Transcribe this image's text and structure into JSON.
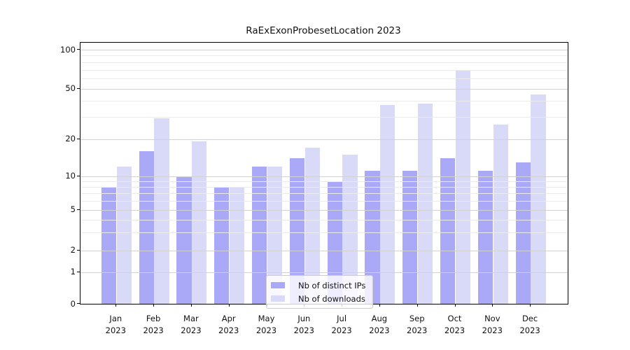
{
  "title": "RaExExonProbesetLocation 2023",
  "colors": {
    "distinct_ips": "#a9a9f8",
    "downloads": "#d9d9f8",
    "axis": "#000000",
    "grid_major": "#d2d2d2",
    "grid_minor": "#ebebeb"
  },
  "legend": {
    "items": [
      {
        "label": "Nb of distinct IPs",
        "color": "#a9a9f8"
      },
      {
        "label": "Nb of downloads",
        "color": "#d9d9f8"
      }
    ]
  },
  "axis": {
    "y_major_ticks": [
      0,
      1,
      2,
      5,
      10,
      20,
      50,
      100
    ],
    "y_minor_gridlines": [
      3,
      4,
      6,
      7,
      8,
      9,
      30,
      40,
      60,
      70,
      80,
      90
    ],
    "x_tick_line1": [
      "Jan",
      "Feb",
      "Mar",
      "Apr",
      "May",
      "Jun",
      "Jul",
      "Aug",
      "Sep",
      "Oct",
      "Nov",
      "Dec"
    ],
    "x_tick_line2": [
      "2023",
      "2023",
      "2023",
      "2023",
      "2023",
      "2023",
      "2023",
      "2023",
      "2023",
      "2023",
      "2023",
      "2023"
    ]
  },
  "chart_data": {
    "type": "bar",
    "title": "RaExExonProbesetLocation 2023",
    "categories": [
      "Jan 2023",
      "Feb 2023",
      "Mar 2023",
      "Apr 2023",
      "May 2023",
      "Jun 2023",
      "Jul 2023",
      "Aug 2023",
      "Sep 2023",
      "Oct 2023",
      "Nov 2023",
      "Dec 2023"
    ],
    "series": [
      {
        "name": "Nb of distinct IPs",
        "color": "#a9a9f8",
        "values": [
          8,
          16,
          10,
          8,
          12,
          14,
          9,
          11,
          11,
          14,
          11,
          13
        ]
      },
      {
        "name": "Nb of downloads",
        "color": "#d9d9f8",
        "values": [
          12,
          29,
          19,
          8,
          12,
          17,
          15,
          37,
          38,
          69,
          26,
          45
        ]
      }
    ],
    "xlabel": "",
    "ylabel": "",
    "yscale": "log-like",
    "y_ticks": [
      0,
      1,
      2,
      5,
      10,
      20,
      50,
      100
    ],
    "ylim": [
      0,
      120
    ],
    "grid": true,
    "legend_position": "lower-center"
  }
}
